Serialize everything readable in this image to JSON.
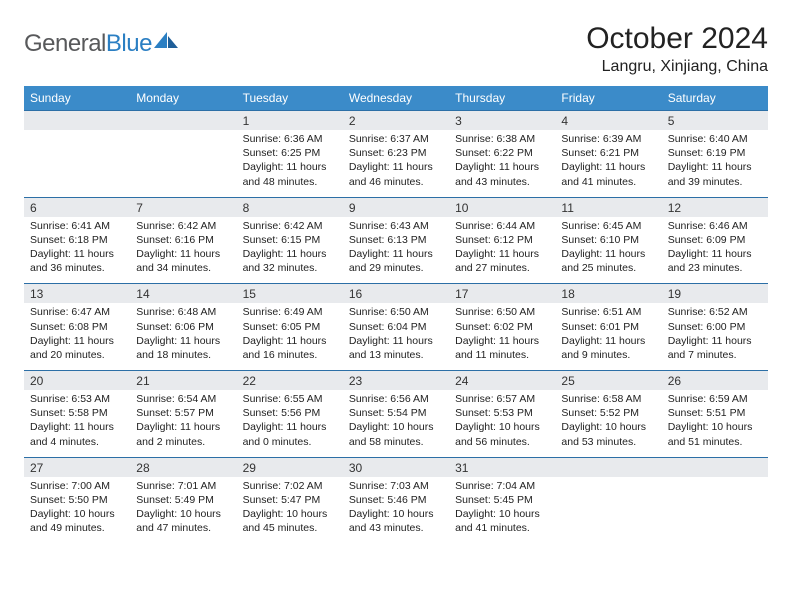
{
  "brand": {
    "part1": "General",
    "part2": "Blue"
  },
  "title": "October 2024",
  "location": "Langru, Xinjiang, China",
  "colors": {
    "header_bg": "#3b8bc9",
    "header_text": "#ffffff",
    "num_bg": "#e8eaed",
    "border_top": "#2c6fa6",
    "logo_gray": "#58595b",
    "logo_blue": "#2b7fc3"
  },
  "day_names": [
    "Sunday",
    "Monday",
    "Tuesday",
    "Wednesday",
    "Thursday",
    "Friday",
    "Saturday"
  ],
  "weeks": [
    {
      "nums": [
        "",
        "",
        "1",
        "2",
        "3",
        "4",
        "5"
      ],
      "details": [
        "",
        "",
        "Sunrise: 6:36 AM\nSunset: 6:25 PM\nDaylight: 11 hours and 48 minutes.",
        "Sunrise: 6:37 AM\nSunset: 6:23 PM\nDaylight: 11 hours and 46 minutes.",
        "Sunrise: 6:38 AM\nSunset: 6:22 PM\nDaylight: 11 hours and 43 minutes.",
        "Sunrise: 6:39 AM\nSunset: 6:21 PM\nDaylight: 11 hours and 41 minutes.",
        "Sunrise: 6:40 AM\nSunset: 6:19 PM\nDaylight: 11 hours and 39 minutes."
      ]
    },
    {
      "nums": [
        "6",
        "7",
        "8",
        "9",
        "10",
        "11",
        "12"
      ],
      "details": [
        "Sunrise: 6:41 AM\nSunset: 6:18 PM\nDaylight: 11 hours and 36 minutes.",
        "Sunrise: 6:42 AM\nSunset: 6:16 PM\nDaylight: 11 hours and 34 minutes.",
        "Sunrise: 6:42 AM\nSunset: 6:15 PM\nDaylight: 11 hours and 32 minutes.",
        "Sunrise: 6:43 AM\nSunset: 6:13 PM\nDaylight: 11 hours and 29 minutes.",
        "Sunrise: 6:44 AM\nSunset: 6:12 PM\nDaylight: 11 hours and 27 minutes.",
        "Sunrise: 6:45 AM\nSunset: 6:10 PM\nDaylight: 11 hours and 25 minutes.",
        "Sunrise: 6:46 AM\nSunset: 6:09 PM\nDaylight: 11 hours and 23 minutes."
      ]
    },
    {
      "nums": [
        "13",
        "14",
        "15",
        "16",
        "17",
        "18",
        "19"
      ],
      "details": [
        "Sunrise: 6:47 AM\nSunset: 6:08 PM\nDaylight: 11 hours and 20 minutes.",
        "Sunrise: 6:48 AM\nSunset: 6:06 PM\nDaylight: 11 hours and 18 minutes.",
        "Sunrise: 6:49 AM\nSunset: 6:05 PM\nDaylight: 11 hours and 16 minutes.",
        "Sunrise: 6:50 AM\nSunset: 6:04 PM\nDaylight: 11 hours and 13 minutes.",
        "Sunrise: 6:50 AM\nSunset: 6:02 PM\nDaylight: 11 hours and 11 minutes.",
        "Sunrise: 6:51 AM\nSunset: 6:01 PM\nDaylight: 11 hours and 9 minutes.",
        "Sunrise: 6:52 AM\nSunset: 6:00 PM\nDaylight: 11 hours and 7 minutes."
      ]
    },
    {
      "nums": [
        "20",
        "21",
        "22",
        "23",
        "24",
        "25",
        "26"
      ],
      "details": [
        "Sunrise: 6:53 AM\nSunset: 5:58 PM\nDaylight: 11 hours and 4 minutes.",
        "Sunrise: 6:54 AM\nSunset: 5:57 PM\nDaylight: 11 hours and 2 minutes.",
        "Sunrise: 6:55 AM\nSunset: 5:56 PM\nDaylight: 11 hours and 0 minutes.",
        "Sunrise: 6:56 AM\nSunset: 5:54 PM\nDaylight: 10 hours and 58 minutes.",
        "Sunrise: 6:57 AM\nSunset: 5:53 PM\nDaylight: 10 hours and 56 minutes.",
        "Sunrise: 6:58 AM\nSunset: 5:52 PM\nDaylight: 10 hours and 53 minutes.",
        "Sunrise: 6:59 AM\nSunset: 5:51 PM\nDaylight: 10 hours and 51 minutes."
      ]
    },
    {
      "nums": [
        "27",
        "28",
        "29",
        "30",
        "31",
        "",
        ""
      ],
      "details": [
        "Sunrise: 7:00 AM\nSunset: 5:50 PM\nDaylight: 10 hours and 49 minutes.",
        "Sunrise: 7:01 AM\nSunset: 5:49 PM\nDaylight: 10 hours and 47 minutes.",
        "Sunrise: 7:02 AM\nSunset: 5:47 PM\nDaylight: 10 hours and 45 minutes.",
        "Sunrise: 7:03 AM\nSunset: 5:46 PM\nDaylight: 10 hours and 43 minutes.",
        "Sunrise: 7:04 AM\nSunset: 5:45 PM\nDaylight: 10 hours and 41 minutes.",
        "",
        ""
      ]
    }
  ]
}
